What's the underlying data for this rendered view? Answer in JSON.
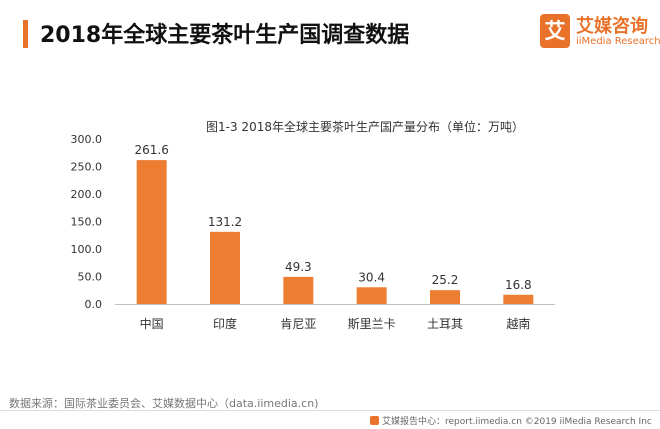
{
  "header": {
    "title": "2018年全球主要茶叶生产国调查数据",
    "logo_mark": "艾",
    "logo_cn": "艾媒咨询",
    "logo_en": "iiMedia Research"
  },
  "chart_data": {
    "type": "bar",
    "title": "图1-3 2018年全球主要茶叶生产国产量分布（单位：万吨）",
    "categories": [
      "中国",
      "印度",
      "肯尼亚",
      "斯里兰卡",
      "土耳其",
      "越南"
    ],
    "values": [
      261.6,
      131.2,
      49.3,
      30.4,
      25.2,
      16.8
    ],
    "value_labels": [
      "261.6",
      "131.2",
      "49.3",
      "30.4",
      "25.2",
      "16.8"
    ],
    "yticks": [
      0,
      50,
      100,
      150,
      200,
      250,
      300
    ],
    "ytick_labels": [
      "0.0",
      "50.0",
      "100.0",
      "150.0",
      "200.0",
      "250.0",
      "300.0"
    ],
    "ylim": [
      0,
      300
    ],
    "xlabel": "",
    "ylabel": "",
    "grid": false,
    "bar_color": "#ed7d31"
  },
  "footer": {
    "source": "数据来源：国际茶业委员会、艾媒数据中心（data.iimedia.cn)",
    "credit": "艾媒报告中心：report.iimedia.cn  ©2019  iiMedia Research  Inc"
  }
}
